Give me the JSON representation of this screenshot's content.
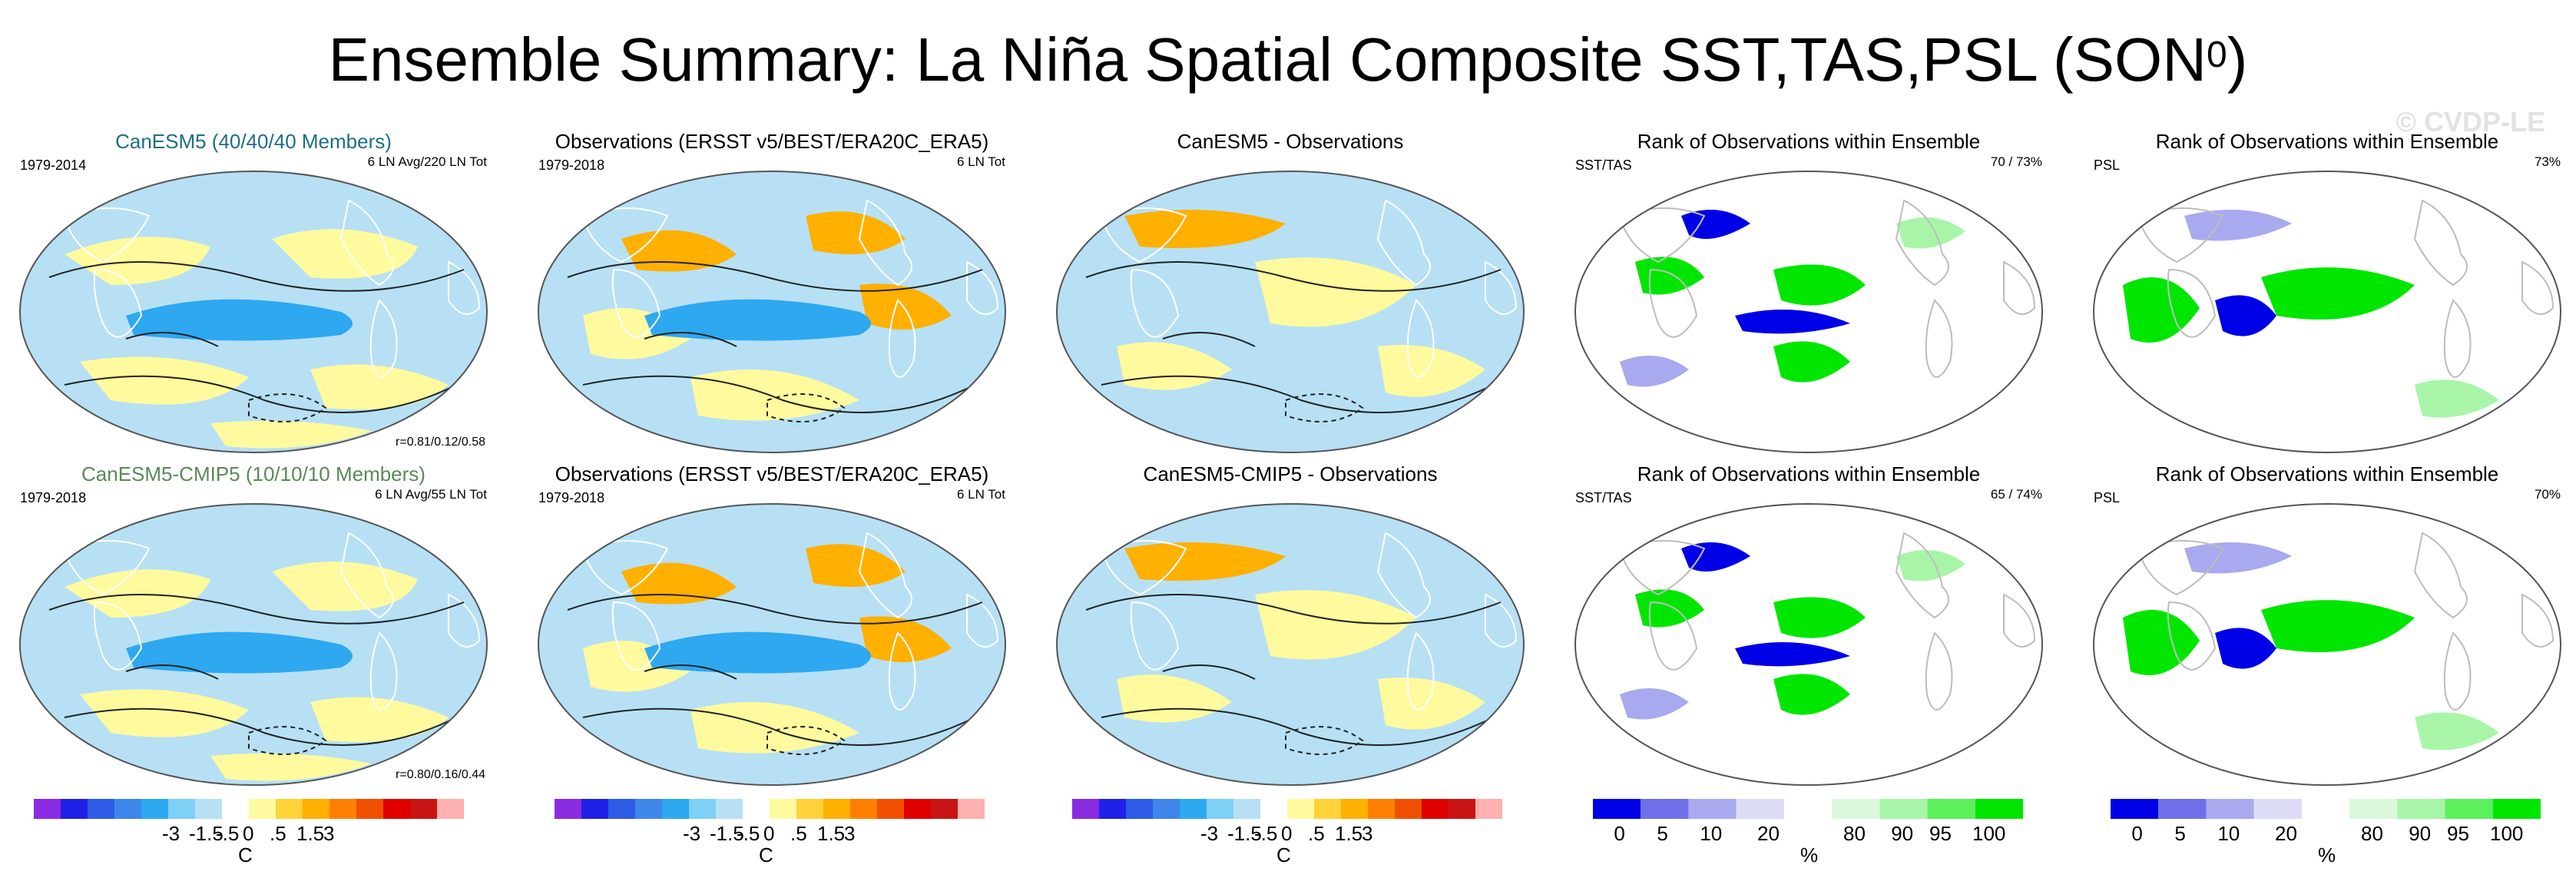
{
  "title": {
    "main": "Ensemble Summary: La Niña Spatial Composite SST,TAS,PSL (SON",
    "sup": "0",
    "close": ")"
  },
  "watermark": "© CVDP-LE",
  "colors": {
    "temp_scale": [
      "#8a2be2",
      "#2020e8",
      "#2e5ce6",
      "#3f86ea",
      "#2ea8f0",
      "#7fd0f5",
      "#b7e0f5",
      "#ffffff",
      "#fffa9e",
      "#ffd23a",
      "#ffb000",
      "#ff8000",
      "#f05000",
      "#e00000",
      "#c81414",
      "#ffb0b0"
    ],
    "rank_scale": [
      "#0000e6",
      "#6f6fe8",
      "#a9a9ef",
      "#dcdcf7",
      "#ffffff",
      "#dcf7dc",
      "#a8f5a8",
      "#5cf05c",
      "#00e600"
    ],
    "map_ocean": "#b7e0f5",
    "map_positive": "#fffa9e",
    "map_strong_negative": "#2ea8f0",
    "map_orange": "#ffb000"
  },
  "panels": [
    {
      "title": "CanESM5 (40/40/40 Members)",
      "title_color": "#1d6f86",
      "left": "1979-2014",
      "right": "6 LN Avg/220 LN Tot",
      "bottom": "r=0.81/0.12/0.58",
      "type": "temp"
    },
    {
      "title": "Observations (ERSST v5/BEST/ERA20C_ERA5)",
      "title_color": "#000000",
      "left": "1979-2018",
      "right": "6 LN Tot",
      "bottom": "",
      "type": "temp"
    },
    {
      "title": "CanESM5 - Observations",
      "title_color": "#000000",
      "left": "",
      "right": "",
      "bottom": "",
      "type": "diff"
    },
    {
      "title": "Rank of Observations within Ensemble",
      "title_color": "#000000",
      "left": "SST/TAS",
      "right": "70 /  73%",
      "bottom": "",
      "type": "rank"
    },
    {
      "title": "Rank of Observations within Ensemble",
      "title_color": "#000000",
      "left": "PSL",
      "right": "73%",
      "bottom": "",
      "type": "rankpsl"
    },
    {
      "title": "CanESM5-CMIP5 (10/10/10 Members)",
      "title_color": "#5a8a55",
      "left": "1979-2018",
      "right": "6 LN Avg/55 LN Tot",
      "bottom": "r=0.80/0.16/0.44",
      "type": "temp"
    },
    {
      "title": "Observations (ERSST v5/BEST/ERA20C_ERA5)",
      "title_color": "#000000",
      "left": "1979-2018",
      "right": "6 LN Tot",
      "bottom": "",
      "type": "temp"
    },
    {
      "title": "CanESM5-CMIP5 - Observations",
      "title_color": "#000000",
      "left": "",
      "right": "",
      "bottom": "",
      "type": "diff"
    },
    {
      "title": "Rank of Observations within Ensemble",
      "title_color": "#000000",
      "left": "SST/TAS",
      "right": "65 /  74%",
      "bottom": "",
      "type": "rank"
    },
    {
      "title": "Rank of Observations within Ensemble",
      "title_color": "#000000",
      "left": "PSL",
      "right": "70%",
      "bottom": "",
      "type": "rankpsl"
    }
  ],
  "colorbars": {
    "temp": {
      "labels": [
        "-3",
        "-1.5",
        "-.5",
        "0",
        ".5",
        "1.5",
        "3"
      ],
      "unit": "C"
    },
    "rank": {
      "labels": [
        "0",
        "5",
        "10",
        "20",
        "80",
        "90",
        "95",
        "100"
      ],
      "unit": "%"
    }
  },
  "chart_data": {
    "type": "heatmap",
    "title": "Ensemble Summary: La Niña Spatial Composite SST,TAS,PSL (SON0)",
    "temperature_levels_C": [
      -3,
      -1.5,
      -0.5,
      0,
      0.5,
      1.5,
      3
    ],
    "rank_levels_percent": [
      0,
      5,
      10,
      20,
      80,
      90,
      95,
      100
    ],
    "pattern_correlations": {
      "CanESM5 (40/40/40 Members)": [
        0.81,
        0.12,
        0.58
      ],
      "CanESM5-CMIP5 (10/10/10 Members)": [
        0.8,
        0.16,
        0.44
      ]
    },
    "rank_percent_within_ensemble": {
      "CanESM5 SST/TAS": [
        70,
        73
      ],
      "CanESM5 PSL": [
        73
      ],
      "CanESM5-CMIP5 SST/TAS": [
        65,
        74
      ],
      "CanESM5-CMIP5 PSL": [
        70
      ]
    }
  }
}
